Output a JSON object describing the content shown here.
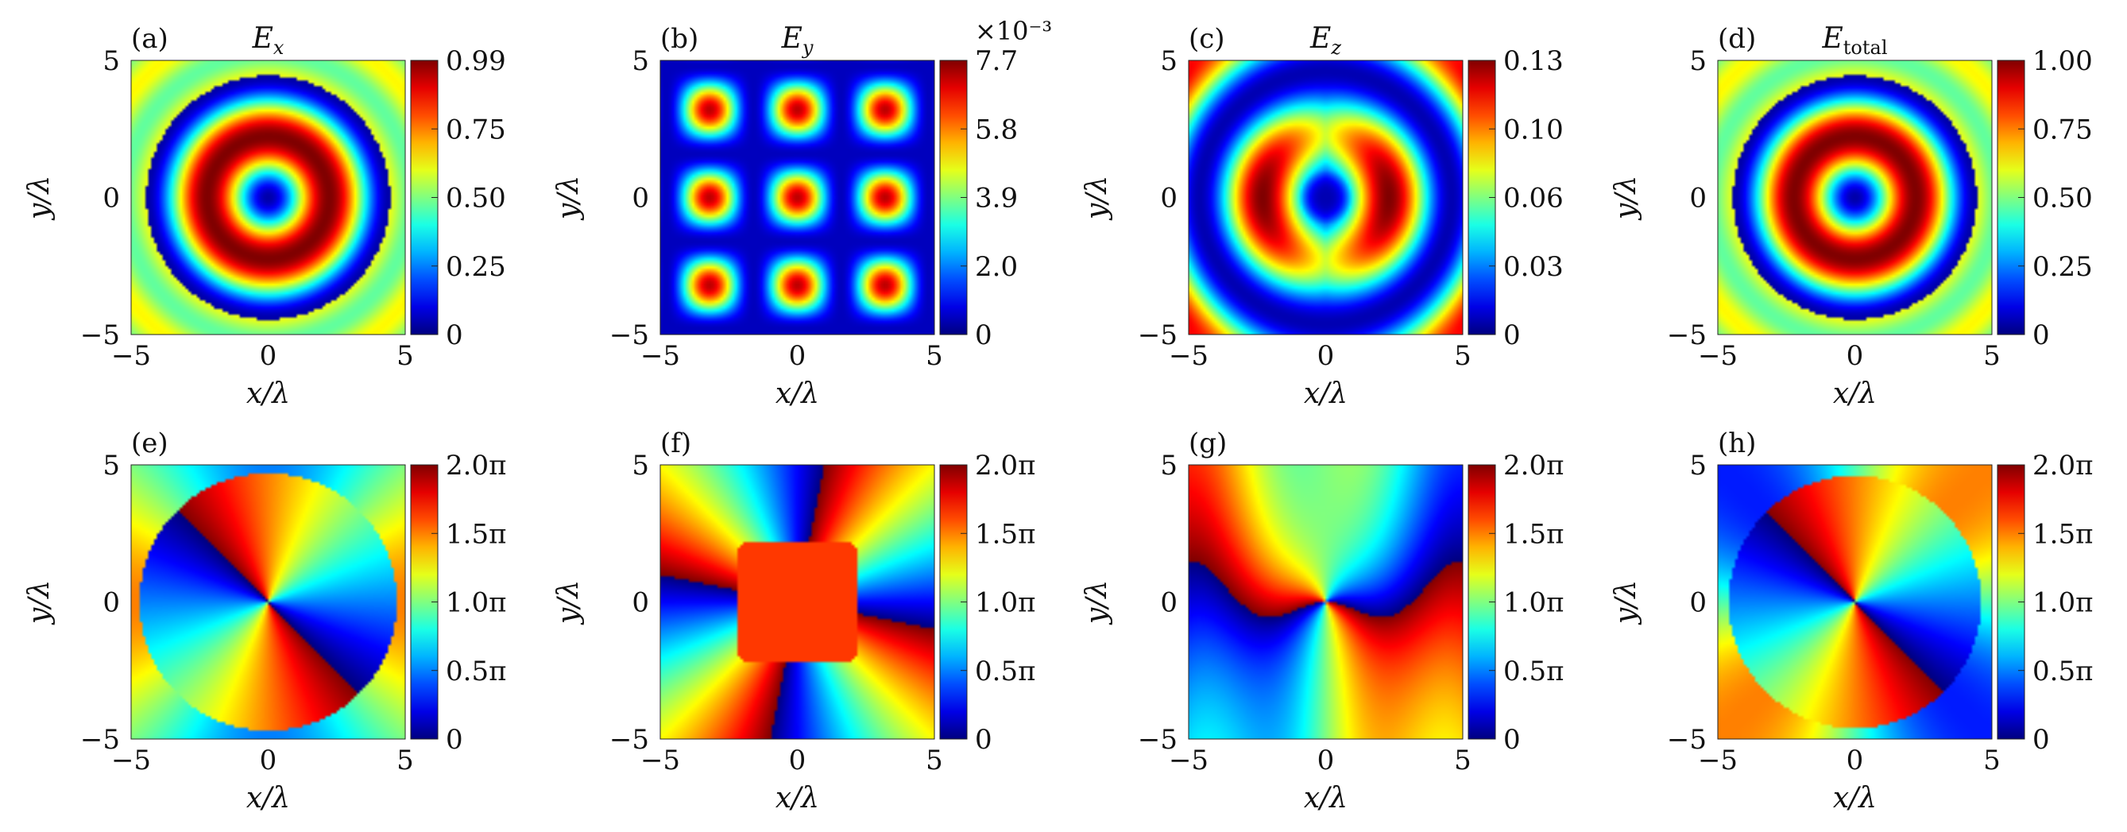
{
  "chart_data": {
    "type": "heatmap",
    "panels": [
      {
        "tag": "(a)",
        "title_main": "E",
        "title_sub": "x",
        "sub_italic": true,
        "pattern": "ring",
        "cmap": "jet",
        "cb_ticks": [
          "0.99",
          "0.75",
          "0.50",
          "0.25",
          "0"
        ],
        "cb_exponent": "",
        "xlabel_v": "x",
        "ylabel_v": "y",
        "xticks": [
          "−5",
          "0",
          "5"
        ],
        "yticks": [
          "5",
          "0",
          "−5"
        ],
        "xlim": [
          -5,
          5
        ],
        "ylim": [
          -5,
          5
        ]
      },
      {
        "tag": "(b)",
        "title_main": "E",
        "title_sub": "y",
        "sub_italic": true,
        "pattern": "ey",
        "cmap": "jet",
        "cb_ticks": [
          "7.7",
          "5.8",
          "3.9",
          "2.0",
          "0"
        ],
        "cb_exponent": "×10⁻³",
        "xlabel_v": "x",
        "ylabel_v": "y",
        "xticks": [
          "−5",
          "0",
          "5"
        ],
        "yticks": [
          "5",
          "0",
          "−5"
        ],
        "xlim": [
          -5,
          5
        ],
        "ylim": [
          -5,
          5
        ]
      },
      {
        "tag": "(c)",
        "title_main": "E",
        "title_sub": "z",
        "sub_italic": true,
        "pattern": "ez",
        "cmap": "jet",
        "cb_ticks": [
          "0.13",
          "0.10",
          "0.06",
          "0.03",
          "0"
        ],
        "cb_exponent": "",
        "xlabel_v": "x",
        "ylabel_v": "y",
        "xticks": [
          "−5",
          "0",
          "5"
        ],
        "yticks": [
          "5",
          "0",
          "−5"
        ],
        "xlim": [
          -5,
          5
        ],
        "ylim": [
          -5,
          5
        ]
      },
      {
        "tag": "(d)",
        "title_main": "E",
        "title_sub": "total",
        "sub_italic": false,
        "pattern": "ring",
        "cmap": "jet",
        "cb_ticks": [
          "1.00",
          "0.75",
          "0.50",
          "0.25",
          "0"
        ],
        "cb_exponent": "",
        "xlabel_v": "x",
        "ylabel_v": "y",
        "xticks": [
          "−5",
          "0",
          "5"
        ],
        "yticks": [
          "5",
          "0",
          "−5"
        ],
        "xlim": [
          -5,
          5
        ],
        "ylim": [
          -5,
          5
        ]
      },
      {
        "tag": "(e)",
        "title_main": "",
        "title_sub": "",
        "sub_italic": true,
        "pattern": "phase_disk",
        "cmap": "jet",
        "cb_ticks": [
          "2.0π",
          "1.5π",
          "1.0π",
          "0.5π",
          "0"
        ],
        "cb_exponent": "",
        "xlabel_v": "x",
        "ylabel_v": "y",
        "xticks": [
          "−5",
          "0",
          "5"
        ],
        "yticks": [
          "5",
          "0",
          "−5"
        ],
        "xlim": [
          -5,
          5
        ],
        "ylim": [
          -5,
          5
        ]
      },
      {
        "tag": "(f)",
        "title_main": "",
        "title_sub": "",
        "sub_italic": true,
        "pattern": "phase_y",
        "cmap": "jet",
        "cb_ticks": [
          "2.0π",
          "1.5π",
          "1.0π",
          "0.5π",
          "0"
        ],
        "cb_exponent": "",
        "xlabel_v": "x",
        "ylabel_v": "y",
        "xticks": [
          "−5",
          "0",
          "5"
        ],
        "yticks": [
          "5",
          "0",
          "−5"
        ],
        "xlim": [
          -5,
          5
        ],
        "ylim": [
          -5,
          5
        ]
      },
      {
        "tag": "(g)",
        "title_main": "",
        "title_sub": "",
        "sub_italic": true,
        "pattern": "phase_z",
        "cmap": "jet",
        "cb_ticks": [
          "2.0π",
          "1.5π",
          "1.0π",
          "0.5π",
          "0"
        ],
        "cb_exponent": "",
        "xlabel_v": "x",
        "ylabel_v": "y",
        "xticks": [
          "−5",
          "0",
          "5"
        ],
        "yticks": [
          "5",
          "0",
          "−5"
        ],
        "xlim": [
          -5,
          5
        ],
        "ylim": [
          -5,
          5
        ]
      },
      {
        "tag": "(h)",
        "title_main": "",
        "title_sub": "",
        "sub_italic": true,
        "pattern": "phase_disk_h",
        "cmap": "jet",
        "cb_ticks": [
          "2.0π",
          "1.5π",
          "1.0π",
          "0.5π",
          "0"
        ],
        "cb_exponent": "",
        "xlabel_v": "x",
        "ylabel_v": "y",
        "xticks": [
          "−5",
          "0",
          "5"
        ],
        "yticks": [
          "5",
          "0",
          "−5"
        ],
        "xlim": [
          -5,
          5
        ],
        "ylim": [
          -5,
          5
        ]
      }
    ]
  }
}
